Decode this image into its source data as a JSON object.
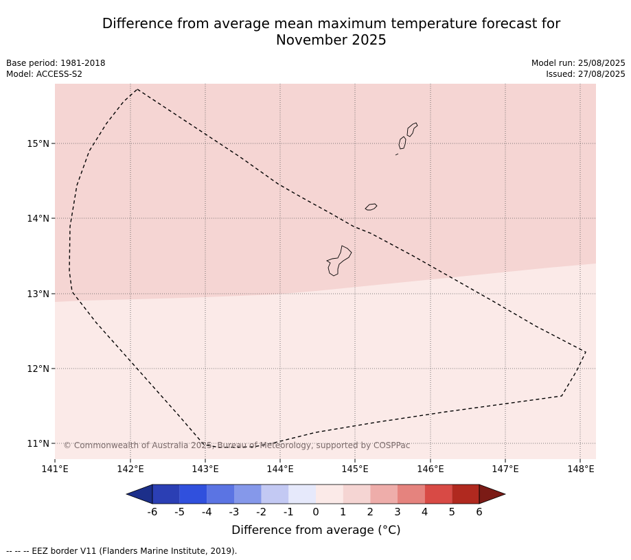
{
  "title_line1": "Difference from average mean maximum temperature forecast for",
  "title_line2": "November 2025",
  "base_period": "Base period: 1981-2018",
  "model": "Model: ACCESS-S2",
  "model_run": "Model run: 25/08/2025",
  "issued": "Issued: 27/08/2025",
  "copyright": "© Commonwealth of Australia 2025, Bureau of Meteorology, supported by COSPPac",
  "lon_ticks": [
    "141°E",
    "142°E",
    "143°E",
    "144°E",
    "145°E",
    "146°E",
    "147°E",
    "148°E"
  ],
  "lat_ticks": [
    "11°N",
    "12°N",
    "13°N",
    "14°N",
    "15°N"
  ],
  "colorbar": {
    "labels": [
      "-6",
      "-5",
      "-4",
      "-3",
      "-2",
      "-1",
      "0",
      "1",
      "2",
      "3",
      "4",
      "5",
      "6"
    ],
    "colors": [
      "#1c2f8a",
      "#2b3fb4",
      "#3050dd",
      "#5b74e3",
      "#8598ea",
      "#c3c9f3",
      "#e6e9fb",
      "#fbeae8",
      "#f5d5d3",
      "#eeadaa",
      "#e5837e",
      "#d84a45",
      "#b0291f",
      "#7b1b16"
    ],
    "title": "Difference from average ($^\\circ$C)",
    "title_display": "Difference from average (°C)"
  },
  "footer": "--  --  -- EEZ border V11 (Flanders Marine Institute, 2019).",
  "map_colors": {
    "north": "#f5d5d3",
    "south": "#fbeae8"
  }
}
